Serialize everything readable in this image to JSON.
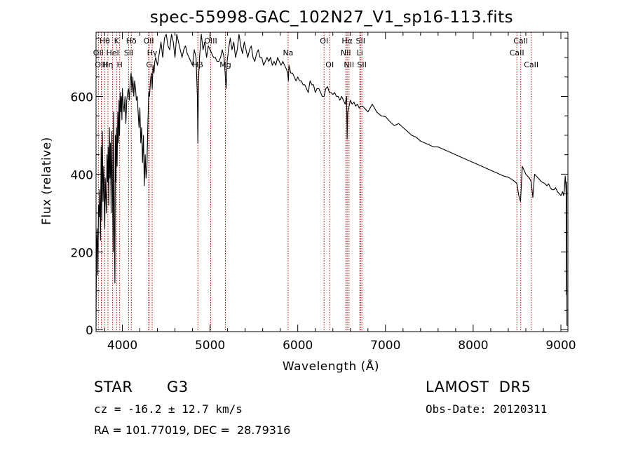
{
  "chart_data": {
    "type": "line",
    "title": "spec-55998-GAC_102N27_V1_sp16-113.fits",
    "xlabel": "Wavelength (Å)",
    "ylabel": "Flux (relative)",
    "xlim": [
      3700,
      9080
    ],
    "ylim": [
      -5,
      765
    ],
    "xticks": [
      4000,
      5000,
      6000,
      7000,
      8000,
      9000
    ],
    "yticks": [
      0,
      200,
      400,
      600
    ],
    "grid": false,
    "series": [
      {
        "color": "#000000",
        "x": [
          3700,
          3705,
          3712,
          3720,
          3728,
          3735,
          3742,
          3750,
          3758,
          3765,
          3772,
          3780,
          3788,
          3795,
          3800,
          3805,
          3810,
          3818,
          3825,
          3832,
          3838,
          3845,
          3852,
          3858,
          3865,
          3872,
          3880,
          3888,
          3895,
          3900,
          3908,
          3915,
          3920,
          3926,
          3933,
          3940,
          3948,
          3955,
          3962,
          3968,
          3975,
          3980,
          3988,
          3995,
          4000,
          4010,
          4020,
          4030,
          4040,
          4050,
          4060,
          4070,
          4080,
          4090,
          4100,
          4110,
          4120,
          4130,
          4140,
          4150,
          4160,
          4170,
          4180,
          4190,
          4200,
          4210,
          4220,
          4230,
          4240,
          4250,
          4260,
          4270,
          4280,
          4290,
          4300,
          4310,
          4320,
          4330,
          4340,
          4350,
          4360,
          4370,
          4380,
          4400,
          4420,
          4440,
          4460,
          4480,
          4500,
          4520,
          4540,
          4560,
          4580,
          4600,
          4620,
          4640,
          4660,
          4680,
          4700,
          4720,
          4740,
          4760,
          4780,
          4800,
          4820,
          4840,
          4855,
          4861,
          4868,
          4880,
          4900,
          4920,
          4940,
          4960,
          4980,
          5000,
          5020,
          5040,
          5060,
          5080,
          5100,
          5120,
          5140,
          5160,
          5172,
          5183,
          5195,
          5210,
          5230,
          5250,
          5270,
          5290,
          5310,
          5330,
          5350,
          5370,
          5390,
          5410,
          5430,
          5450,
          5470,
          5490,
          5510,
          5530,
          5550,
          5570,
          5590,
          5610,
          5630,
          5650,
          5670,
          5690,
          5710,
          5730,
          5750,
          5770,
          5790,
          5810,
          5830,
          5850,
          5870,
          5885,
          5893,
          5900,
          5920,
          5940,
          5960,
          5980,
          6000,
          6020,
          6040,
          6060,
          6080,
          6100,
          6120,
          6140,
          6160,
          6180,
          6200,
          6220,
          6240,
          6260,
          6280,
          6300,
          6320,
          6340,
          6360,
          6380,
          6400,
          6420,
          6440,
          6460,
          6480,
          6500,
          6520,
          6540,
          6556,
          6563,
          6570,
          6580,
          6600,
          6620,
          6640,
          6660,
          6680,
          6700,
          6720,
          6740,
          6760,
          6780,
          6800,
          6850,
          6900,
          6950,
          7000,
          7050,
          7100,
          7150,
          7200,
          7250,
          7300,
          7350,
          7400,
          7450,
          7500,
          7550,
          7600,
          7650,
          7700,
          7750,
          7800,
          7850,
          7900,
          7950,
          8000,
          8050,
          8100,
          8150,
          8200,
          8250,
          8300,
          8350,
          8400,
          8450,
          8480,
          8500,
          8520,
          8540,
          8560,
          8580,
          8600,
          8620,
          8640,
          8662,
          8680,
          8700,
          8720,
          8740,
          8760,
          8780,
          8800,
          8820,
          8840,
          8860,
          8880,
          8900,
          8920,
          8940,
          8960,
          8980,
          9000,
          9010,
          9020,
          9030,
          9040,
          9045,
          9050,
          9055,
          9060,
          9064,
          9066,
          9070
        ],
        "y": [
          10,
          200,
          260,
          140,
          320,
          290,
          360,
          230,
          470,
          280,
          510,
          330,
          420,
          300,
          260,
          390,
          350,
          300,
          450,
          380,
          470,
          320,
          520,
          390,
          480,
          300,
          510,
          350,
          200,
          560,
          260,
          120,
          500,
          380,
          520,
          420,
          560,
          480,
          590,
          500,
          610,
          560,
          600,
          540,
          620,
          580,
          560,
          600,
          530,
          590,
          610,
          620,
          590,
          640,
          660,
          610,
          650,
          600,
          640,
          620,
          590,
          600,
          560,
          520,
          570,
          480,
          520,
          430,
          500,
          370,
          450,
          390,
          420,
          520,
          610,
          600,
          640,
          660,
          620,
          680,
          660,
          690,
          700,
          680,
          710,
          740,
          700,
          750,
          760,
          730,
          720,
          760,
          740,
          700,
          760,
          740,
          720,
          700,
          720,
          730,
          710,
          700,
          690,
          680,
          720,
          700,
          600,
          480,
          640,
          700,
          760,
          720,
          740,
          700,
          730,
          720,
          710,
          700,
          700,
          690,
          690,
          700,
          720,
          700,
          660,
          620,
          690,
          720,
          750,
          720,
          740,
          700,
          720,
          760,
          730,
          710,
          740,
          720,
          700,
          720,
          730,
          700,
          690,
          710,
          720,
          700,
          700,
          680,
          690,
          700,
          690,
          700,
          680,
          690,
          680,
          700,
          690,
          680,
          690,
          680,
          670,
          660,
          640,
          680,
          660,
          660,
          650,
          640,
          650,
          640,
          640,
          630,
          630,
          620,
          610,
          640,
          630,
          630,
          610,
          620,
          620,
          610,
          600,
          600,
          620,
          625,
          610,
          610,
          605,
          610,
          600,
          600,
          590,
          600,
          590,
          580,
          600,
          490,
          560,
          570,
          590,
          580,
          585,
          575,
          580,
          570,
          575,
          575,
          570,
          565,
          560,
          580,
          560,
          550,
          548,
          535,
          525,
          530,
          520,
          510,
          500,
          495,
          485,
          480,
          475,
          470,
          470,
          465,
          460,
          455,
          450,
          445,
          440,
          435,
          430,
          425,
          420,
          415,
          410,
          405,
          400,
          395,
          392,
          385,
          380,
          375,
          345,
          330,
          420,
          410,
          400,
          395,
          390,
          380,
          340,
          400,
          395,
          390,
          385,
          380,
          378,
          375,
          370,
          375,
          365,
          360,
          360,
          365,
          355,
          350,
          345,
          350,
          355,
          345,
          360,
          380,
          395,
          375,
          350,
          90,
          380,
          10
        ]
      }
    ],
    "lines": [
      {
        "label": "Hθ",
        "x": 3798,
        "row": 1
      },
      {
        "label": "K",
        "x": 3934,
        "row": 1
      },
      {
        "label": "Hδ",
        "x": 4102,
        "row": 1
      },
      {
        "label": "OII",
        "x": 4300,
        "row": 1
      },
      {
        "label": "OIII",
        "x": 5007,
        "row": 1
      },
      {
        "label": "OI",
        "x": 6300,
        "row": 1
      },
      {
        "label": "Hα",
        "x": 6563,
        "row": 1
      },
      {
        "label": "SII",
        "x": 6716,
        "row": 1
      },
      {
        "label": "CaII",
        "x": 8542,
        "row": 1
      },
      {
        "label": "OII",
        "x": 3727,
        "row": 2
      },
      {
        "label": "HeI",
        "x": 3889,
        "row": 2
      },
      {
        "label": "SII",
        "x": 4072,
        "row": 2
      },
      {
        "label": "Hγ",
        "x": 4340,
        "row": 2
      },
      {
        "label": "Na",
        "x": 5890,
        "row": 2
      },
      {
        "label": "NII",
        "x": 6548,
        "row": 2
      },
      {
        "label": "Li",
        "x": 6708,
        "row": 2
      },
      {
        "label": "CaII",
        "x": 8498,
        "row": 2
      },
      {
        "label": "OIII",
        "x": 3760,
        "row": 3
      },
      {
        "label": "Hη",
        "x": 3835,
        "row": 3
      },
      {
        "label": "H",
        "x": 3969,
        "row": 3
      },
      {
        "label": "G",
        "x": 4305,
        "row": 3
      },
      {
        "label": "Hβ",
        "x": 4861,
        "row": 3
      },
      {
        "label": "Mg",
        "x": 5175,
        "row": 3
      },
      {
        "label": "OI",
        "x": 6364,
        "row": 3
      },
      {
        "label": "NII",
        "x": 6584,
        "row": 3
      },
      {
        "label": "SII",
        "x": 6731,
        "row": 3
      },
      {
        "label": "CaII",
        "x": 8662,
        "row": 3
      }
    ],
    "line_color": "#c00000"
  },
  "info": {
    "object_class": "STAR",
    "subclass": "G3",
    "survey": "LAMOST  DR5",
    "velocity": "cz = -16.2 ± 12.7 km/s",
    "obs_date": "Obs-Date: 20120311",
    "coords": "RA = 101.77019, DEC =  28.79316"
  }
}
